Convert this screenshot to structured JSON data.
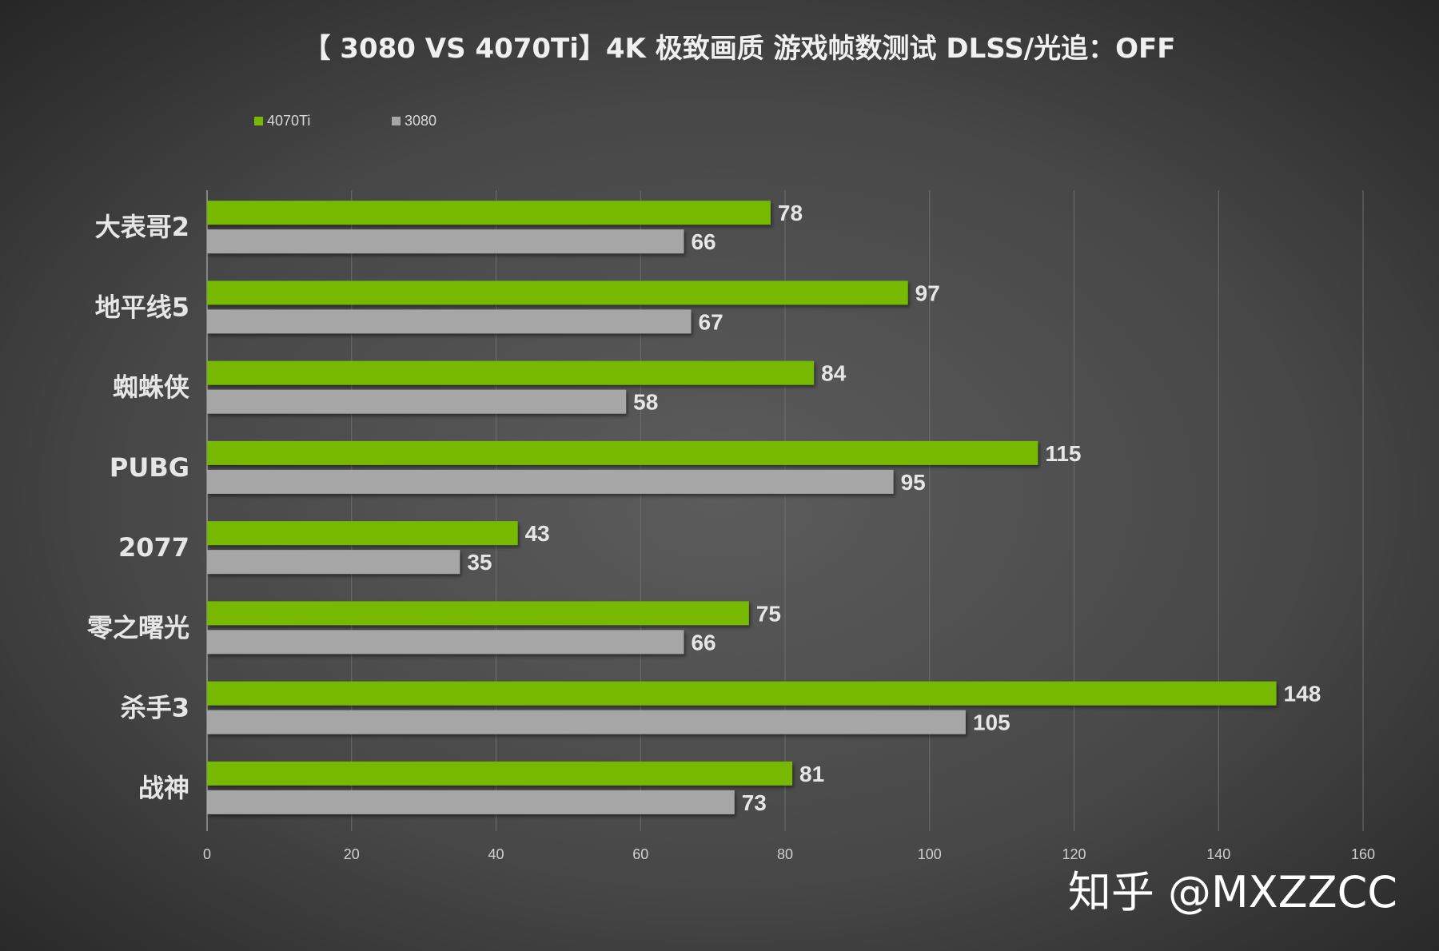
{
  "chart_data": {
    "type": "bar",
    "orientation": "horizontal",
    "title": "【 3080 VS 4070Ti】4K 极致画质 游戏帧数测试 DLSS/光追：OFF",
    "categories": [
      "大表哥2",
      "地平线5",
      "蜘蛛侠",
      "PUBG",
      "2077",
      "零之曙光",
      "杀手3",
      "战神"
    ],
    "series": [
      {
        "name": "4070Ti",
        "color": "#76b900",
        "values": [
          78,
          97,
          84,
          115,
          43,
          75,
          148,
          81
        ]
      },
      {
        "name": "3080",
        "color": "#a6a6a6",
        "values": [
          66,
          67,
          58,
          95,
          35,
          66,
          105,
          73
        ]
      }
    ],
    "xlim": [
      0,
      160
    ],
    "xticks": [
      0,
      20,
      40,
      60,
      80,
      100,
      120,
      140,
      160
    ],
    "grid": true,
    "legend_position": "top-left",
    "xlabel": "",
    "ylabel": ""
  },
  "watermark": "知乎 @MXZZCC",
  "colors": {
    "background_center": "#5a5a5a",
    "background_edge": "#262626",
    "gridline": "#6e6e6e"
  }
}
